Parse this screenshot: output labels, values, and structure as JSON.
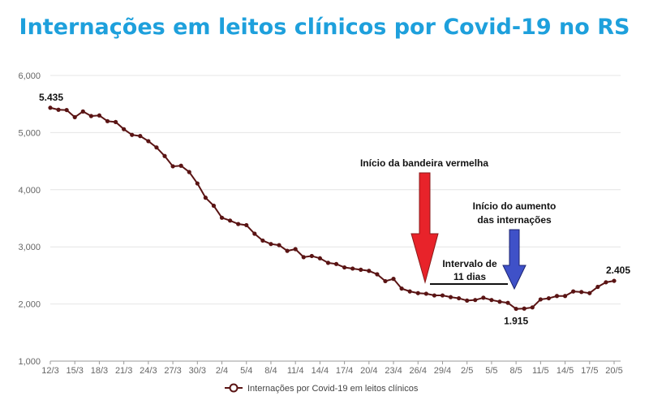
{
  "title": "Internações em leitos clínicos por Covid-19 no RS",
  "chart_data": {
    "type": "line",
    "title": "Internações em leitos clínicos por Covid-19 no RS",
    "x_ticks": [
      "12/3",
      "15/3",
      "18/3",
      "21/3",
      "24/3",
      "27/3",
      "30/3",
      "2/4",
      "5/4",
      "8/4",
      "11/4",
      "14/4",
      "17/4",
      "20/4",
      "23/4",
      "26/4",
      "29/4",
      "2/5",
      "5/5",
      "8/5",
      "11/5",
      "14/5",
      "17/5",
      "20/5"
    ],
    "y_ticks": [
      "1,000",
      "2,000",
      "3,000",
      "4,000",
      "5,000",
      "6,000"
    ],
    "ylim": [
      1000,
      6000
    ],
    "grid": true,
    "legend_position": "bottom",
    "series": [
      {
        "name": "Internações por Covid-19 em leitos clínicos",
        "color": "#5a1414",
        "values": [
          5435,
          5400,
          5395,
          5270,
          5370,
          5290,
          5300,
          5200,
          5185,
          5060,
          4960,
          4940,
          4850,
          4740,
          4590,
          4410,
          4420,
          4310,
          4110,
          3860,
          3720,
          3510,
          3460,
          3400,
          3380,
          3230,
          3110,
          3050,
          3030,
          2930,
          2960,
          2820,
          2840,
          2800,
          2720,
          2700,
          2640,
          2620,
          2600,
          2580,
          2520,
          2400,
          2440,
          2270,
          2220,
          2190,
          2180,
          2150,
          2150,
          2120,
          2100,
          2060,
          2070,
          2110,
          2070,
          2040,
          2020,
          1915,
          1920,
          1940,
          2080,
          2100,
          2140,
          2140,
          2220,
          2210,
          2190,
          2300,
          2380,
          2405
        ]
      }
    ],
    "point_labels": [
      "5.435",
      "1.915",
      "2.405"
    ],
    "annotations": {
      "red_flag": "Início da bandeira vermelha",
      "increase_line1": "Início do aumento",
      "increase_line2": "das internações",
      "interval_line1": "Intervalo de",
      "interval_line2": "11 dias"
    }
  }
}
